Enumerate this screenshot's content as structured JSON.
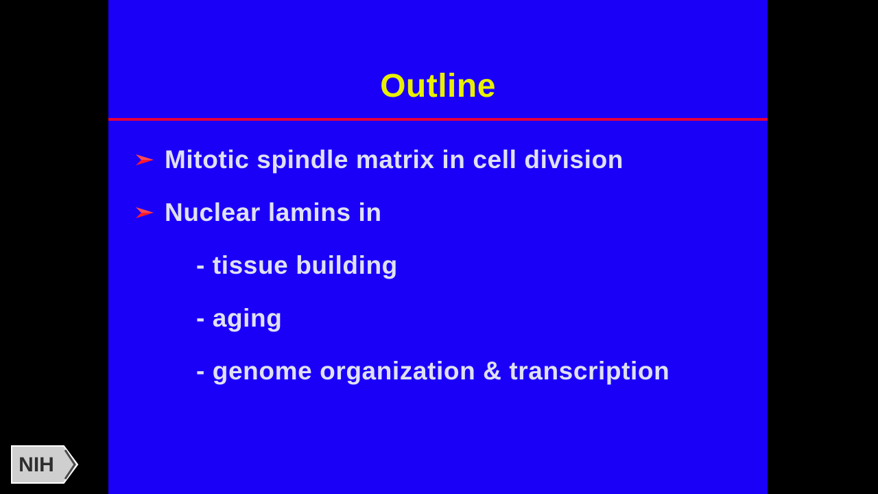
{
  "slide": {
    "title": "Outline",
    "bullets": [
      {
        "text": "Mitotic spindle matrix in cell division"
      },
      {
        "text": "Nuclear lamins in"
      }
    ],
    "sub_items": [
      {
        "text": "- tissue building"
      },
      {
        "text": "- aging"
      },
      {
        "text": "- genome organization & transcription"
      }
    ]
  },
  "logo": {
    "text": "NIH"
  },
  "colors": {
    "slide_background": "#1b00f8",
    "title": "#e8f000",
    "rule": "#e8003a",
    "body_text": "#dfe0f4",
    "bullet_arrow": "#ff1a2a",
    "frame": "#000000"
  },
  "icons": {
    "bullet": "red-arrow-bullet-icon",
    "logo": "nih-chevron-logo-icon"
  }
}
